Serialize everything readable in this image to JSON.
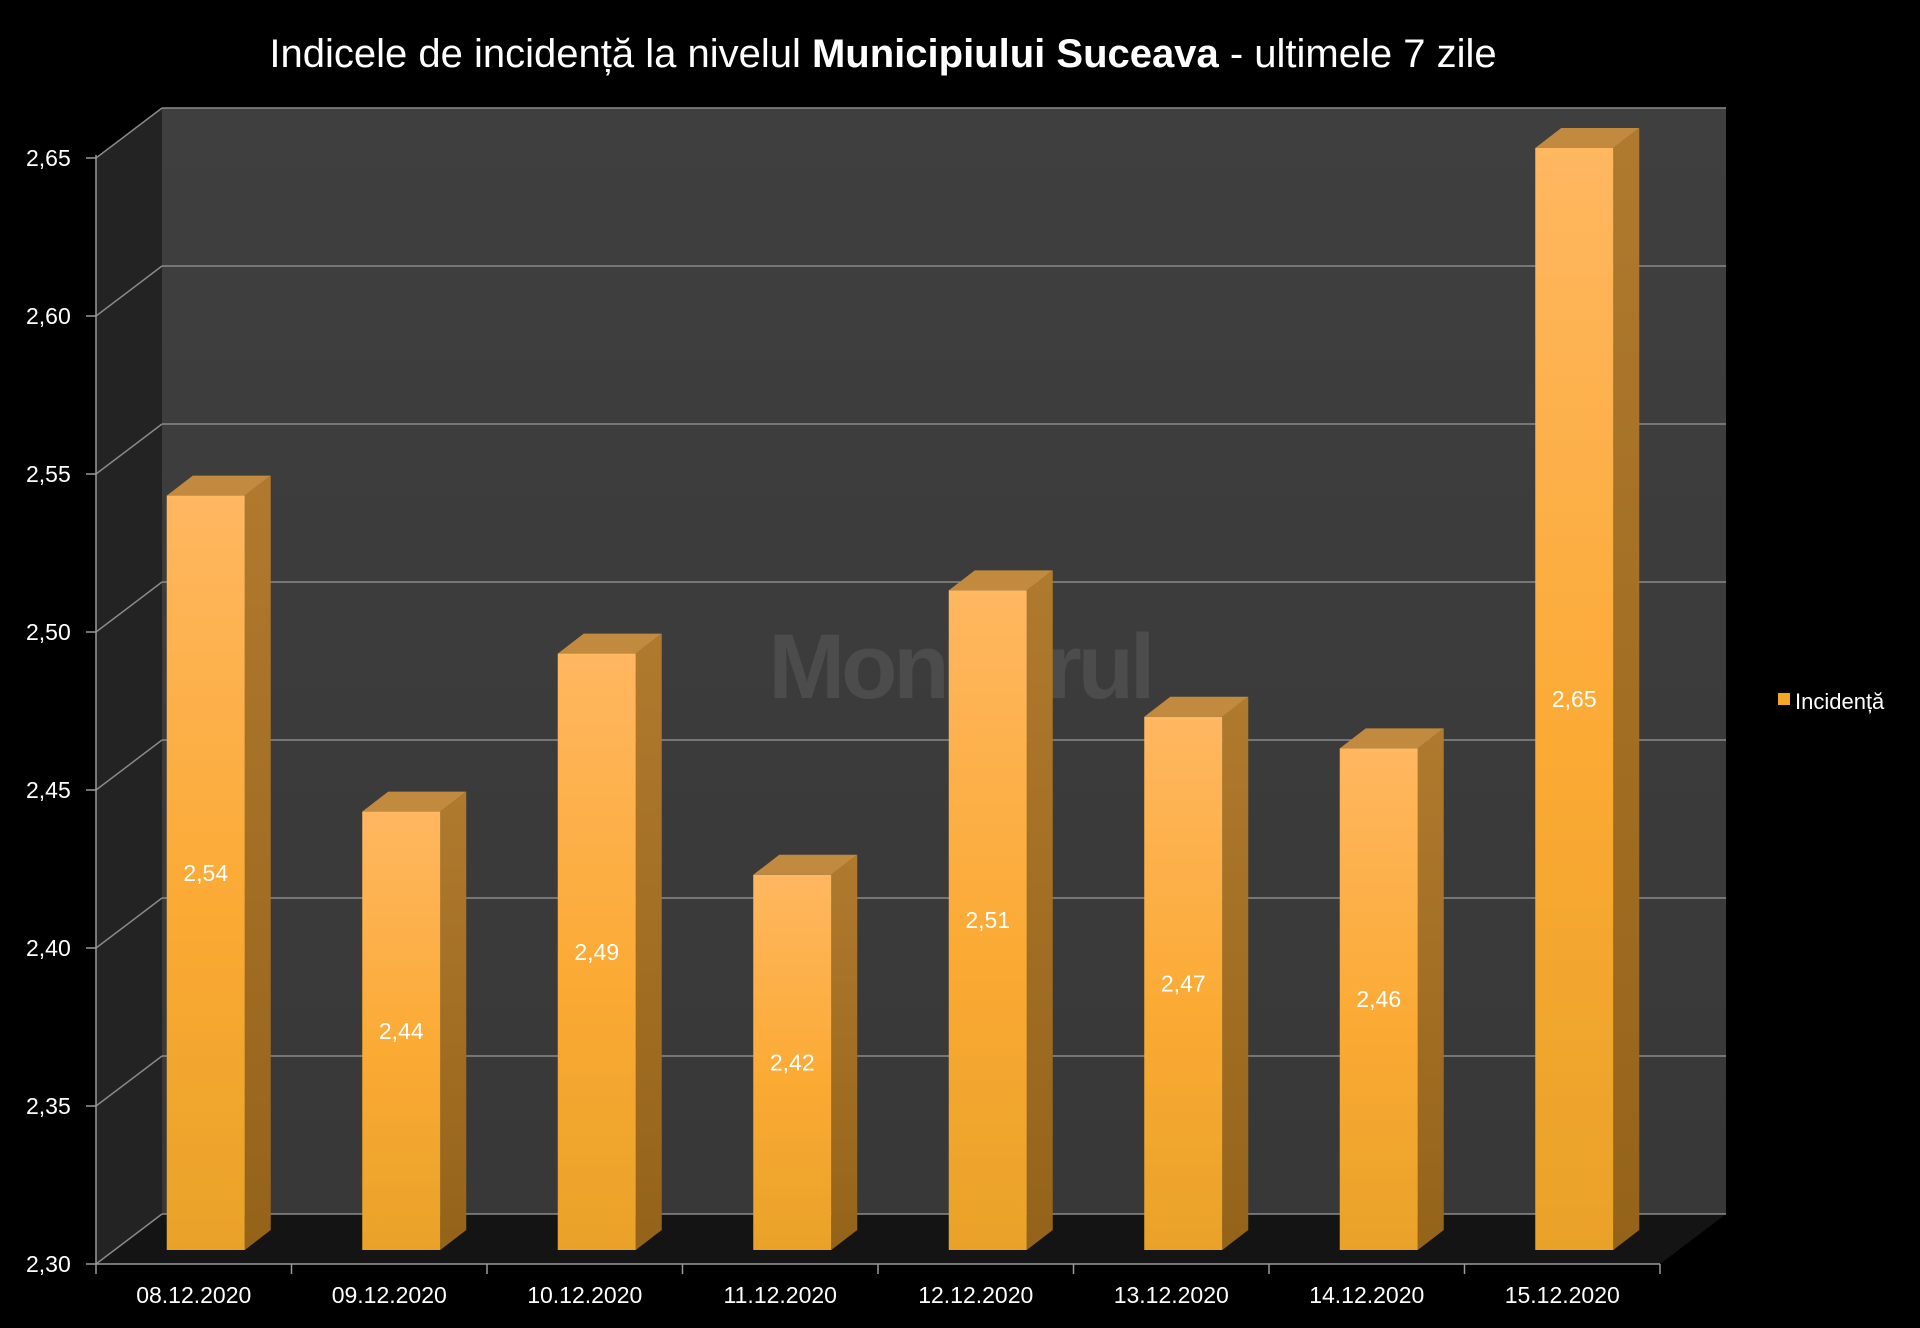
{
  "chart_data": {
    "type": "bar",
    "title": {
      "prefix": "Indicele de incidență la nivelul ",
      "bold": "Municipiului Suceava",
      "suffix": " - ultimele 7 zile"
    },
    "categories": [
      "08.12.2020",
      "09.12.2020",
      "10.12.2020",
      "11.12.2020",
      "12.12.2020",
      "13.12.2020",
      "14.12.2020",
      "15.12.2020"
    ],
    "series": [
      {
        "name": "Incidență",
        "values": [
          2.54,
          2.44,
          2.49,
          2.42,
          2.51,
          2.47,
          2.46,
          2.65
        ],
        "labels": [
          "2,54",
          "2,44",
          "2,49",
          "2,42",
          "2,51",
          "2,47",
          "2,46",
          "2,65"
        ],
        "color": "#F5A623"
      }
    ],
    "ylim": [
      2.3,
      2.65
    ],
    "yticks": [
      "2,30",
      "2,35",
      "2,40",
      "2,45",
      "2,50",
      "2,55",
      "2,60",
      "2,65"
    ],
    "xlabel": "",
    "ylabel": "",
    "grid": true,
    "legend": "right",
    "watermark": "Monitorul",
    "colors": {
      "background": "#000000",
      "back_wall": "#3c3c3c",
      "side_wall": "#232323",
      "floor": "#141414",
      "grid": "#8a8a8a",
      "bar_top": "#ffb760",
      "bar_bottom": "#e9a229",
      "bar_side": "#a8721e",
      "bar_cap": "#c18a3e"
    }
  }
}
